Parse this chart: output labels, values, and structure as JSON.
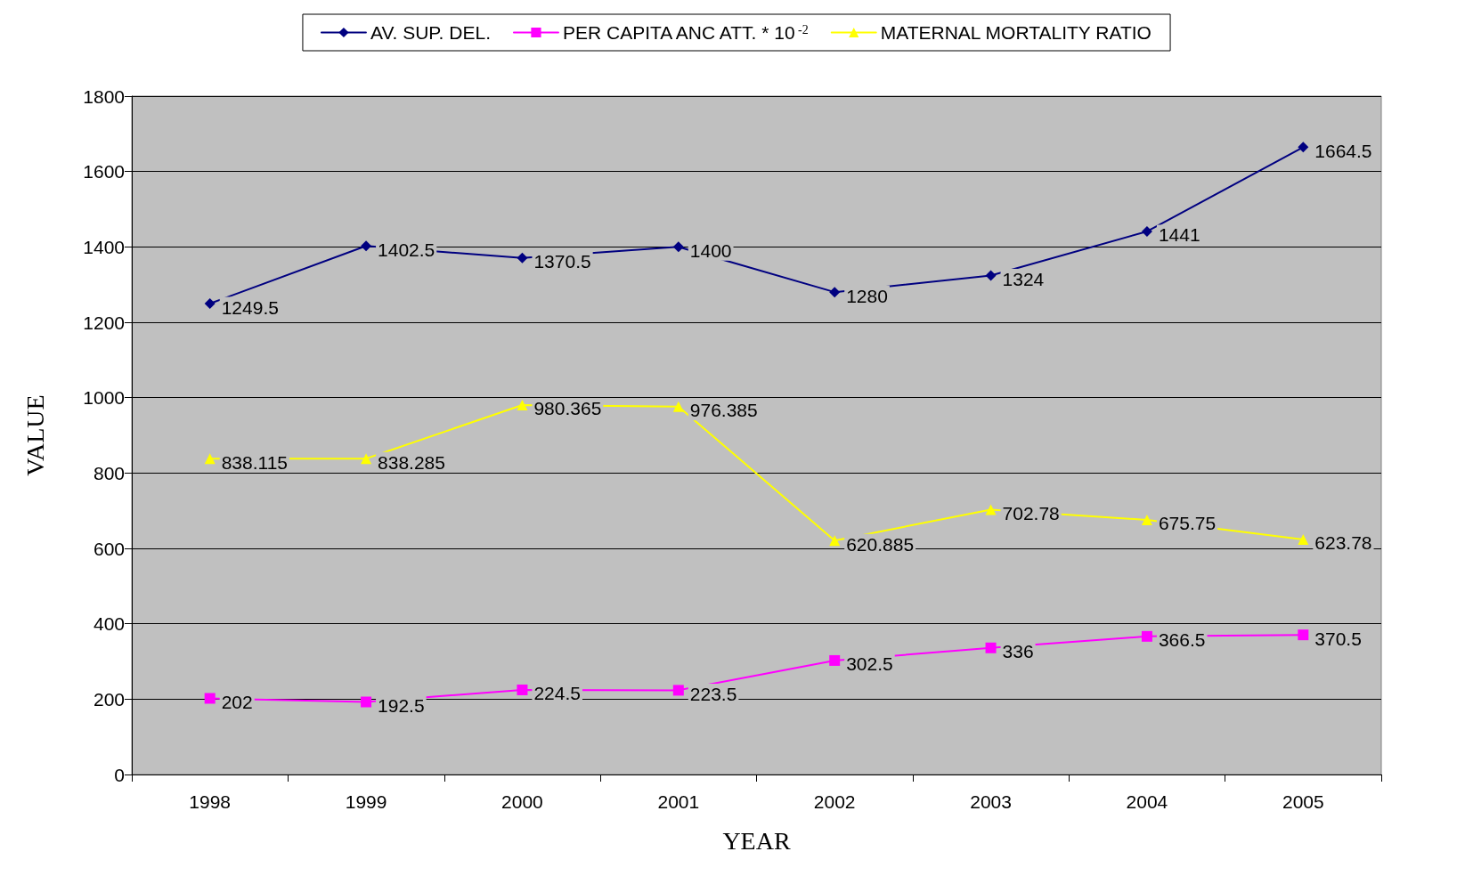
{
  "chart_data": {
    "type": "line",
    "xlabel": "YEAR",
    "ylabel": "VALUE",
    "categories": [
      "1998",
      "1999",
      "2000",
      "2001",
      "2002",
      "2003",
      "2004",
      "2005"
    ],
    "series": [
      {
        "name": "AV. SUP. DEL.",
        "color": "#000080",
        "marker": "diamond",
        "values": [
          1249.5,
          1402.5,
          1370.5,
          1400,
          1280,
          1324,
          1441,
          1664.5
        ]
      },
      {
        "name": "PER CAPITA ANC ATT. * 10$^{-2}$",
        "color": "#ff00ff",
        "marker": "square",
        "values": [
          202,
          192.5,
          224.5,
          223.5,
          302.5,
          336,
          366.5,
          370.5
        ]
      },
      {
        "name": "MATERNAL MORTALITY RATIO",
        "color": "#ffff00",
        "marker": "triangle",
        "values": [
          838.115,
          838.285,
          980.365,
          976.385,
          620.885,
          702.78,
          675.75,
          623.78
        ]
      }
    ],
    "ylim": [
      0,
      1800
    ],
    "yticks": [
      0,
      200,
      400,
      600,
      800,
      1000,
      1200,
      1400,
      1600,
      1800
    ],
    "grid": "y",
    "legend": "top",
    "data_labels": true
  }
}
